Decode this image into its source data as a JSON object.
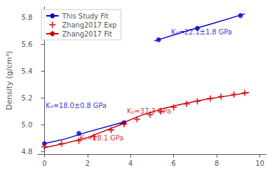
{
  "chart_data": {
    "type": "line",
    "ylabel": "Density (g/cm³)",
    "xlim": [
      -0.3,
      10.3
    ],
    "xticks": [
      0,
      2,
      4,
      6,
      8,
      10
    ],
    "ylim": [
      4.78,
      5.88
    ],
    "yticks": [
      4.8,
      {
        "value": 5.0,
        "label": "5.0"
      },
      5.2,
      5.4,
      5.6,
      5.8
    ],
    "grid": false,
    "legend": "upper left",
    "series": [
      {
        "name": "This Study Fit",
        "type": "line",
        "color": "#0000cc",
        "line_style": "solid",
        "x": [
          0.0,
          1.0,
          2.0,
          3.7
        ],
        "values": [
          4.858,
          4.895,
          4.945,
          5.02
        ]
      },
      {
        "type": "scatter",
        "color": "#0000cc",
        "marker": "circle",
        "x": [
          0.0,
          1.6,
          3.7
        ],
        "values": [
          4.858,
          4.935,
          5.015
        ]
      },
      {
        "name": "This Study Fit",
        "type": "line",
        "color": "#0000cc",
        "line_style": "solid",
        "x": [
          5.1,
          6.5,
          7.8,
          9.3
        ],
        "values": [
          5.625,
          5.695,
          5.755,
          5.828
        ]
      },
      {
        "type": "scatter",
        "color": "#0000cc",
        "marker": "circle",
        "x": [
          5.3,
          7.1,
          9.1
        ],
        "values": [
          5.635,
          5.72,
          5.815
        ]
      },
      {
        "name": "Zhang2017 Exp",
        "type": "scatter",
        "color": "#cc0000",
        "marker": "plus",
        "x": [
          0.0,
          0.8,
          1.6,
          2.3,
          3.1,
          3.7,
          4.3,
          4.9,
          5.4,
          6.0,
          6.6,
          7.1,
          7.7,
          8.2,
          8.8,
          9.3
        ],
        "values": [
          4.835,
          4.858,
          4.88,
          4.91,
          4.96,
          5.005,
          5.04,
          5.075,
          5.1,
          5.13,
          5.155,
          5.175,
          5.195,
          5.21,
          5.225,
          5.238
        ]
      },
      {
        "name": "Zhang2017 Fit",
        "type": "line",
        "color": "#cc0000",
        "line_style": "solid",
        "x": [
          0.0,
          1.0,
          2.0,
          3.7
        ],
        "values": [
          4.828,
          4.862,
          4.904,
          5.01
        ]
      },
      {
        "name": "Zhang2017 Fit",
        "type": "line",
        "color": "#cc0000",
        "line_style": "solid",
        "x": [
          3.5,
          4.5,
          5.5,
          6.5,
          7.5,
          8.5,
          9.5
        ],
        "values": [
          5.005,
          5.07,
          5.12,
          5.158,
          5.19,
          5.215,
          5.24
        ]
      }
    ],
    "annotations": [
      {
        "text": "K₀=18.0±0.8 GPa",
        "x": 0.08,
        "y": 5.115,
        "color": "#0000cc"
      },
      {
        "text": "K₀=22.1±1.8 GPa",
        "x": 5.9,
        "y": 5.665,
        "color": "#0000cc"
      },
      {
        "text": "K₀=18.1 GPa",
        "x": 1.65,
        "y": 4.875,
        "color": "#cc0000"
      },
      {
        "text": "K₀=37.3 GPa",
        "x": 3.85,
        "y": 5.075,
        "color": "#cc0000"
      }
    ]
  }
}
